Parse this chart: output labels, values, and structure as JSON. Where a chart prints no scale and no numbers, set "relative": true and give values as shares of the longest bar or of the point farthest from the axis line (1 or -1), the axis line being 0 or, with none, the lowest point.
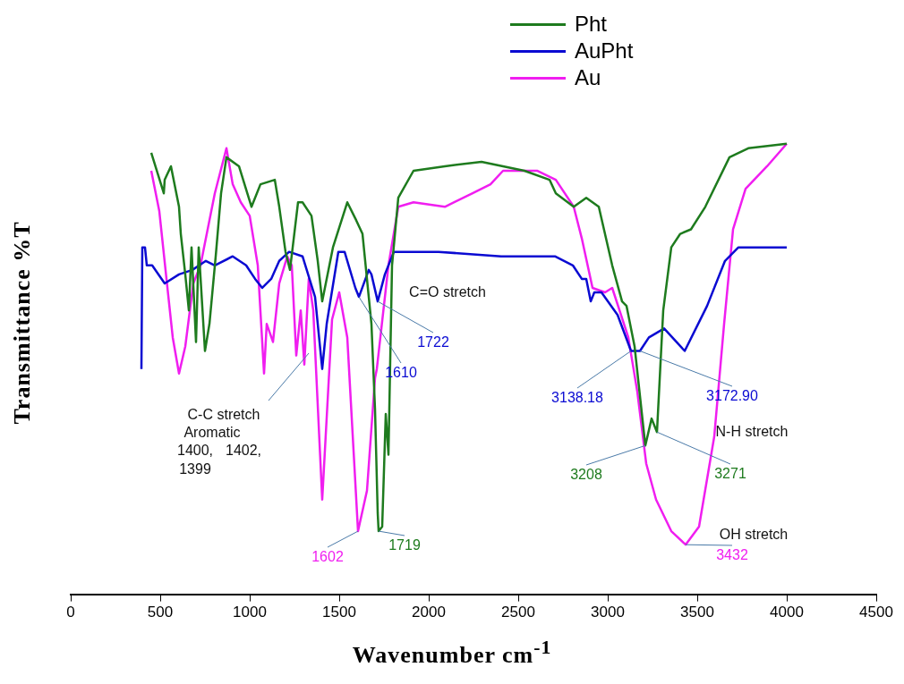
{
  "chart_data": {
    "type": "line",
    "relative": true,
    "xlabel": "Wavenumber cm$^{-1}$",
    "ylabel": "Transmittance %T",
    "xlim": [
      0,
      4500
    ],
    "xticks": [
      0,
      500,
      1000,
      1500,
      2000,
      2500,
      3000,
      3500,
      4000,
      4500
    ],
    "legend": "top right",
    "series": [
      {
        "name": "Pht",
        "color": "#1e7b1e",
        "x": [
          450,
          520,
          525,
          560,
          605,
          615,
          640,
          660,
          675,
          700,
          715,
          750,
          775,
          810,
          840,
          870,
          940,
          1010,
          1060,
          1140,
          1165,
          1200,
          1225,
          1270,
          1295,
          1345,
          1380,
          1405,
          1465,
          1545,
          1595,
          1630,
          1680,
          1700,
          1715,
          1720,
          1740,
          1760,
          1775,
          1795,
          1830,
          1915,
          2090,
          2295,
          2535,
          2675,
          2710,
          2810,
          2880,
          2950,
          3025,
          3080,
          3105,
          3150,
          3210,
          3245,
          3275,
          3310,
          3355,
          3405,
          3465,
          3545,
          3680,
          3785,
          4000
        ],
        "values": [
          0.98,
          0.89,
          0.92,
          0.95,
          0.86,
          0.8,
          0.71,
          0.63,
          0.77,
          0.56,
          0.77,
          0.54,
          0.6,
          0.75,
          0.89,
          0.97,
          0.95,
          0.86,
          0.91,
          0.92,
          0.86,
          0.76,
          0.72,
          0.87,
          0.87,
          0.84,
          0.74,
          0.65,
          0.77,
          0.87,
          0.83,
          0.8,
          0.6,
          0.41,
          0.18,
          0.14,
          0.15,
          0.4,
          0.31,
          0.73,
          0.88,
          0.94,
          0.95,
          0.96,
          0.94,
          0.92,
          0.89,
          0.86,
          0.88,
          0.86,
          0.73,
          0.65,
          0.64,
          0.55,
          0.33,
          0.39,
          0.36,
          0.63,
          0.77,
          0.8,
          0.81,
          0.86,
          0.97,
          0.99,
          1
        ]
      },
      {
        "name": "AuPht",
        "color": "#0a0ad2",
        "x": [
          395,
          400,
          415,
          425,
          455,
          525,
          605,
          680,
          755,
          805,
          905,
          980,
          1030,
          1070,
          1120,
          1165,
          1220,
          1295,
          1365,
          1405,
          1430,
          1495,
          1530,
          1590,
          1610,
          1665,
          1680,
          1715,
          1755,
          1805,
          2055,
          2405,
          2705,
          2805,
          2855,
          2880,
          2905,
          2925,
          2965,
          3055,
          3130,
          3180,
          3230,
          3315,
          3430,
          3555,
          3655,
          3730,
          3880,
          4000
        ],
        "values": [
          0.5,
          0.77,
          0.77,
          0.73,
          0.73,
          0.69,
          0.71,
          0.72,
          0.74,
          0.73,
          0.75,
          0.73,
          0.7,
          0.68,
          0.7,
          0.74,
          0.76,
          0.75,
          0.66,
          0.5,
          0.6,
          0.76,
          0.76,
          0.68,
          0.66,
          0.72,
          0.71,
          0.65,
          0.71,
          0.76,
          0.76,
          0.75,
          0.75,
          0.73,
          0.7,
          0.7,
          0.65,
          0.67,
          0.67,
          0.62,
          0.54,
          0.54,
          0.57,
          0.59,
          0.54,
          0.64,
          0.74,
          0.77,
          0.77,
          0.77
        ]
      },
      {
        "name": "Au",
        "color": "#f01ef0",
        "x": [
          450,
          495,
          535,
          570,
          605,
          640,
          685,
          725,
          805,
          870,
          905,
          950,
          1000,
          1045,
          1080,
          1095,
          1130,
          1165,
          1210,
          1235,
          1260,
          1285,
          1305,
          1330,
          1355,
          1405,
          1460,
          1500,
          1545,
          1605,
          1655,
          1700,
          1710,
          1775,
          1830,
          1915,
          2090,
          2245,
          2345,
          2415,
          2605,
          2710,
          2810,
          2855,
          2915,
          2985,
          3025,
          3115,
          3165,
          3215,
          3270,
          3355,
          3435,
          3510,
          3595,
          3650,
          3700,
          3770,
          3890,
          4000
        ],
        "values": [
          0.94,
          0.85,
          0.7,
          0.57,
          0.49,
          0.55,
          0.69,
          0.73,
          0.89,
          0.99,
          0.91,
          0.87,
          0.84,
          0.73,
          0.49,
          0.6,
          0.56,
          0.69,
          0.75,
          0.73,
          0.53,
          0.63,
          0.51,
          0.7,
          0.63,
          0.21,
          0.61,
          0.67,
          0.57,
          0.14,
          0.23,
          0.48,
          0.5,
          0.73,
          0.86,
          0.87,
          0.86,
          0.89,
          0.91,
          0.94,
          0.94,
          0.92,
          0.86,
          0.79,
          0.68,
          0.67,
          0.68,
          0.57,
          0.45,
          0.29,
          0.21,
          0.14,
          0.11,
          0.15,
          0.35,
          0.6,
          0.81,
          0.9,
          0.95,
          1
        ]
      }
    ],
    "annotations": [
      "C=O stretch",
      "C-C stretch",
      "Aromatic",
      "1400,",
      "1402,",
      "1399",
      "N-H stretch",
      "OH stretch",
      {
        "text": "1722",
        "x": 1715,
        "y": 0.65
      },
      {
        "text": "1610",
        "x": 1610,
        "y": 0.66
      },
      {
        "text": "3138.18",
        "x": 3130,
        "y": 0.54
      },
      {
        "text": "3172.90",
        "x": 3180,
        "y": 0.54
      },
      {
        "text": "3208",
        "x": 3210,
        "y": 0.33
      },
      {
        "text": "3271",
        "x": 3275,
        "y": 0.36
      },
      {
        "text": "1719",
        "x": 1720,
        "y": 0.14
      },
      {
        "text": "1602",
        "x": 1605,
        "y": 0.14
      },
      {
        "text": "3432",
        "x": 3435,
        "y": 0.11
      }
    ]
  }
}
